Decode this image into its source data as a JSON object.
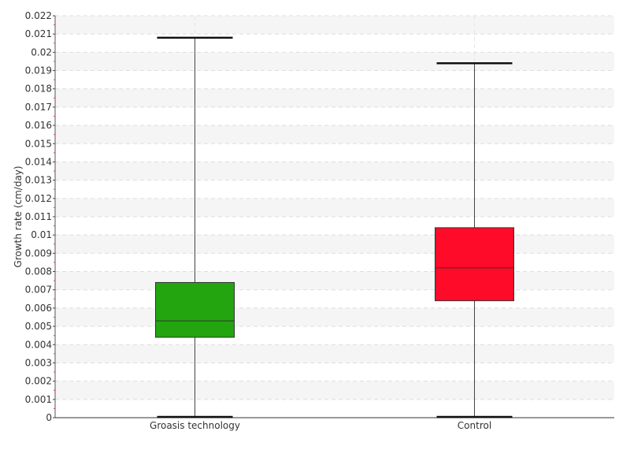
{
  "chart_data": {
    "type": "boxplot",
    "title": "",
    "xlabel": "",
    "ylabel": "Growth rate (cm/day)",
    "ylim": [
      0,
      0.022
    ],
    "y_tick_step": 0.001,
    "grid": true,
    "legend": "none",
    "categories": [
      "Groasis technology",
      "Control"
    ],
    "boxes": [
      {
        "category": "Groasis technology",
        "min": 0.0,
        "q1": 0.0044,
        "median": 0.0053,
        "q3": 0.0074,
        "max": 0.0208,
        "color": "#22a50f"
      },
      {
        "category": "Control",
        "min": 0.0,
        "q1": 0.0064,
        "median": 0.0082,
        "q3": 0.0104,
        "max": 0.0194,
        "color": "#ff0b2a"
      }
    ]
  }
}
